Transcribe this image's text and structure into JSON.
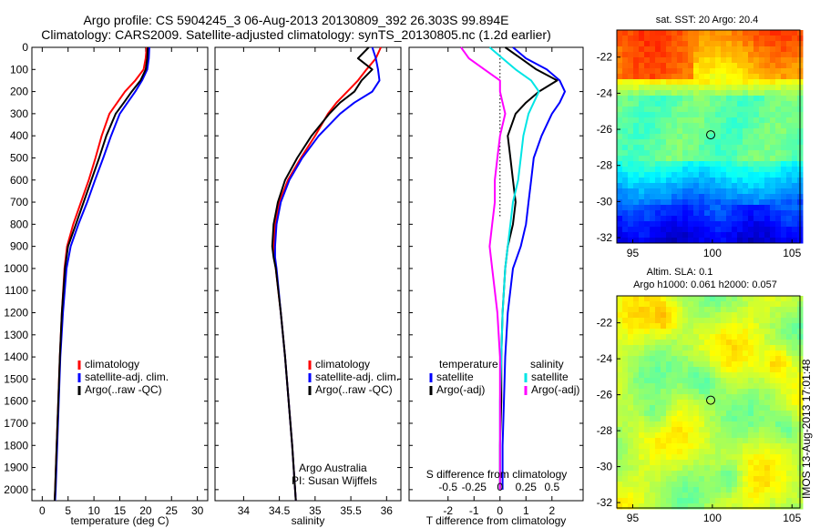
{
  "header": {
    "line1": "Argo profile: CS 5904245_3 06-Aug-2013 20130809_392 26.303S 99.894E",
    "line2": "Climatology: CARS2009. Satellite-adjusted climatology: synTS_20130805.nc (1.2d earlier)"
  },
  "colors": {
    "climatology": "#ff0000",
    "satellite": "#0000ff",
    "argo": "#000000",
    "salinity_satellite": "#00e5e5",
    "salinity_argo": "#ff00ff"
  },
  "chart_data": [
    {
      "type": "line",
      "xlabel": "temperature (deg C)",
      "xlim": [
        -2,
        32
      ],
      "xticks": [
        0,
        5,
        10,
        15,
        20,
        25,
        30
      ],
      "ylim": [
        2050,
        0
      ],
      "yticks": [
        0,
        100,
        200,
        300,
        400,
        500,
        600,
        700,
        800,
        900,
        1000,
        1100,
        1200,
        1300,
        1400,
        1500,
        1600,
        1700,
        1800,
        1900,
        2000
      ],
      "legend": [
        "climatology",
        "satellite-adj. clim.",
        "Argo(..raw -QC)"
      ],
      "series": [
        {
          "name": "climatology",
          "color": "#ff0000",
          "depth": [
            0,
            50,
            100,
            150,
            200,
            250,
            300,
            400,
            500,
            600,
            700,
            800,
            900,
            1000,
            1200,
            1400,
            1600,
            1800,
            2000,
            2050
          ],
          "values": [
            20.2,
            20.0,
            19.6,
            18.0,
            16.0,
            14.5,
            13.0,
            11.5,
            10.3,
            9.0,
            7.5,
            6.0,
            4.8,
            4.3,
            3.8,
            3.4,
            3.1,
            2.8,
            2.5,
            2.4
          ]
        },
        {
          "name": "satellite-adj. clim.",
          "color": "#0000ff",
          "depth": [
            0,
            50,
            100,
            150,
            200,
            250,
            300,
            400,
            500,
            600,
            700,
            800,
            900,
            1000,
            1200,
            1400,
            1600,
            1800,
            2000,
            2050
          ],
          "values": [
            20.7,
            20.6,
            20.3,
            19.3,
            18.0,
            16.5,
            15.0,
            13.3,
            11.8,
            10.2,
            8.7,
            7.0,
            5.5,
            4.7,
            4.0,
            3.5,
            3.2,
            2.9,
            2.6,
            2.5
          ]
        },
        {
          "name": "Argo(..raw -QC)",
          "color": "#000000",
          "depth": [
            0,
            50,
            100,
            150,
            200,
            250,
            300,
            400,
            500,
            600,
            700,
            800,
            900,
            1000,
            1200,
            1400,
            1600,
            1800,
            2000,
            2050
          ],
          "values": [
            20.4,
            20.3,
            20.0,
            19.0,
            17.3,
            15.8,
            14.2,
            12.4,
            11.0,
            9.5,
            8.0,
            6.5,
            5.0,
            4.4,
            3.8,
            3.4,
            3.1,
            2.8,
            2.5,
            2.4
          ]
        }
      ]
    },
    {
      "type": "line",
      "xlabel": "salinity",
      "xlim": [
        33.6,
        36.2
      ],
      "xticks": [
        34,
        34.5,
        35,
        35.5,
        36
      ],
      "ylim": [
        2050,
        0
      ],
      "legend": [
        "climatology",
        "satellite-adj. clim.",
        "Argo(..raw -QC)"
      ],
      "annotations": [
        "Argo Australia",
        "PI: Susan Wijffels"
      ],
      "series": [
        {
          "name": "climatology",
          "color": "#ff0000",
          "depth": [
            0,
            50,
            100,
            150,
            200,
            250,
            300,
            400,
            500,
            600,
            700,
            800,
            900,
            950,
            1000,
            1200,
            1400,
            1600,
            1800,
            2000,
            2050
          ],
          "values": [
            35.92,
            35.85,
            35.72,
            35.6,
            35.45,
            35.3,
            35.18,
            35.0,
            34.8,
            34.62,
            34.5,
            34.44,
            34.42,
            34.43,
            34.45,
            34.52,
            34.58,
            34.63,
            34.68,
            34.72,
            34.73
          ]
        },
        {
          "name": "satellite-adj. clim.",
          "color": "#0000ff",
          "depth": [
            0,
            50,
            100,
            150,
            200,
            250,
            300,
            400,
            500,
            600,
            700,
            800,
            900,
            950,
            1000,
            1200,
            1400,
            1600,
            1800,
            2000,
            2050
          ],
          "values": [
            35.8,
            35.85,
            35.88,
            35.9,
            35.8,
            35.55,
            35.35,
            35.05,
            34.82,
            34.64,
            34.52,
            34.46,
            34.44,
            34.44,
            34.46,
            34.52,
            34.58,
            34.63,
            34.68,
            34.72,
            34.73
          ]
        },
        {
          "name": "Argo(..raw -QC)",
          "color": "#000000",
          "depth": [
            0,
            50,
            100,
            150,
            200,
            250,
            300,
            400,
            500,
            600,
            700,
            800,
            900,
            950,
            1000,
            1200,
            1400,
            1600,
            1800,
            2000,
            2050
          ],
          "values": [
            35.75,
            35.6,
            35.8,
            35.65,
            35.55,
            35.35,
            35.2,
            34.95,
            34.75,
            34.58,
            34.48,
            34.42,
            34.4,
            34.42,
            34.45,
            34.52,
            34.58,
            34.63,
            34.68,
            34.72,
            34.73
          ]
        }
      ]
    },
    {
      "type": "line",
      "xlabel": "T difference from climatology",
      "xlabel_top": "S difference from climatology",
      "xlim": [
        -3.5,
        3.2
      ],
      "xticks": [
        -2,
        -1,
        0,
        1,
        2
      ],
      "xticks_top_labels": [
        "-0.5",
        "-0.25",
        "0",
        "0.25",
        "0.5"
      ],
      "xticks_top_positions": [
        -2,
        -1,
        0,
        1,
        2
      ],
      "ylim": [
        2050,
        0
      ],
      "legend_groups": [
        {
          "title": "temperature",
          "items": [
            "satellite",
            "Argo(-adj)"
          ]
        },
        {
          "title": "salinity",
          "items": [
            "satellite",
            "Argo(-adj)"
          ]
        }
      ],
      "series": [
        {
          "name": "temperature satellite",
          "color": "#0000ff",
          "depth": [
            0,
            50,
            100,
            150,
            200,
            250,
            300,
            400,
            500,
            600,
            700,
            800,
            900,
            1000,
            1200,
            1400,
            1600,
            1800,
            2000
          ],
          "values": [
            0.5,
            1.0,
            1.8,
            2.3,
            2.5,
            2.3,
            2.0,
            1.6,
            1.3,
            1.2,
            1.1,
            1.0,
            0.8,
            0.5,
            0.3,
            0.2,
            0.15,
            0.1,
            0.1
          ]
        },
        {
          "name": "temperature Argo(-adj)",
          "color": "#000000",
          "depth": [
            0,
            50,
            100,
            150,
            200,
            250,
            300,
            400,
            500,
            600,
            700,
            800,
            900,
            1000,
            1200,
            1400,
            1600,
            1800,
            2000
          ],
          "values": [
            0.2,
            0.8,
            1.4,
            2.2,
            1.5,
            1.0,
            0.6,
            0.3,
            0.4,
            0.5,
            0.6,
            0.5,
            0.3,
            0.2,
            0.1,
            0.05,
            0.05,
            0.0,
            0.0
          ]
        },
        {
          "name": "salinity satellite",
          "color": "#00e5e5",
          "depth": [
            0,
            50,
            100,
            150,
            200,
            250,
            300,
            400,
            500,
            600,
            700,
            800,
            900,
            1000,
            1200,
            1400,
            1600,
            1800,
            2000
          ],
          "values": [
            -0.4,
            0.1,
            0.6,
            1.2,
            1.5,
            1.3,
            1.1,
            0.9,
            0.8,
            0.7,
            0.5,
            0.4,
            0.3,
            0.2,
            0.1,
            0.05,
            0.0,
            0.0,
            0.0
          ]
        },
        {
          "name": "salinity Argo(-adj)",
          "color": "#ff00ff",
          "depth": [
            0,
            50,
            100,
            150,
            200,
            250,
            300,
            400,
            500,
            600,
            700,
            800,
            900,
            1000,
            1200,
            1400,
            1600,
            1800,
            2000
          ],
          "values": [
            -1.5,
            -1.2,
            -0.6,
            0.0,
            0.0,
            0.1,
            0.2,
            0.0,
            -0.1,
            -0.2,
            -0.2,
            -0.3,
            -0.4,
            -0.3,
            -0.1,
            0.0,
            0.0,
            0.0,
            0.0
          ]
        }
      ]
    },
    {
      "type": "heatmap",
      "title": "sat. SST: 20 Argo: 20.4",
      "xlim": [
        94,
        105.5
      ],
      "ylim": [
        -32.3,
        -20.5
      ],
      "xticks": [
        95,
        100,
        105
      ],
      "yticks": [
        -22,
        -24,
        -26,
        -28,
        -30,
        -32
      ],
      "marker": {
        "lon": 99.894,
        "lat": -26.303
      }
    },
    {
      "type": "heatmap",
      "title": "Altim. SLA: 0.1",
      "subtitle": "Argo h1000: 0.061 h2000: 0.057",
      "xlim": [
        94,
        105.5
      ],
      "ylim": [
        -32.3,
        -20.5
      ],
      "xticks": [
        95,
        100,
        105
      ],
      "yticks": [
        -22,
        -24,
        -26,
        -28,
        -30,
        -32
      ],
      "marker": {
        "lon": 99.894,
        "lat": -26.303
      }
    }
  ],
  "footer": {
    "credit": "IMOS 13-Aug-2013 17:01:48"
  }
}
